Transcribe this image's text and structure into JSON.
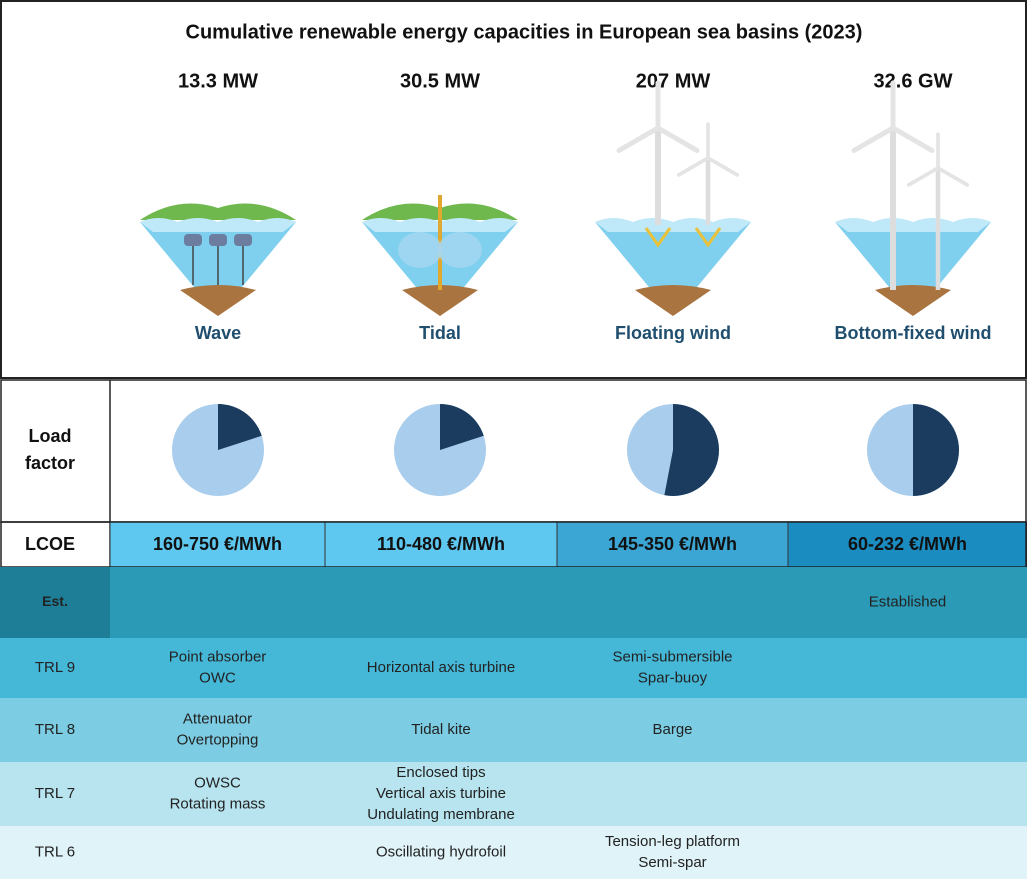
{
  "title": "Cumulative renewable energy capacities in European sea basins (2023)",
  "technologies": [
    {
      "name": "Wave",
      "capacity": "13.3 MW"
    },
    {
      "name": "Tidal",
      "capacity": "30.5 MW"
    },
    {
      "name": "Floating wind",
      "capacity": "207 MW"
    },
    {
      "name": "Bottom-fixed wind",
      "capacity": "32.6 GW"
    }
  ],
  "table": {
    "load_factor": {
      "label": [
        "Load",
        "factor"
      ],
      "values": [
        20,
        20,
        53,
        50
      ]
    },
    "lcoe": {
      "label": "LCOE",
      "values": [
        "160-750 €/MWh",
        "110-480 €/MWh",
        "145-350 €/MWh",
        "60-232 €/MWh"
      ]
    },
    "trl_rows": [
      {
        "label": "Est.",
        "cells": [
          null,
          null,
          null,
          [
            "Established"
          ]
        ]
      },
      {
        "label": "TRL 9",
        "cells": [
          [
            "Point absorber",
            "OWC"
          ],
          [
            "Horizontal axis turbine"
          ],
          [
            "Semi-submersible",
            "Spar-buoy"
          ],
          null
        ]
      },
      {
        "label": "TRL 8",
        "cells": [
          [
            "Attenuator",
            "Overtopping"
          ],
          [
            "Tidal kite"
          ],
          [
            "Barge"
          ],
          null
        ]
      },
      {
        "label": "TRL 7",
        "cells": [
          [
            "OWSC",
            "Rotating mass"
          ],
          [
            "Enclosed tips",
            "Vertical axis turbine",
            "Undulating membrane"
          ],
          null,
          null
        ]
      },
      {
        "label": "TRL 6",
        "cells": [
          null,
          [
            "Oscillating hydrofoil"
          ],
          [
            "Tension-leg platform",
            "Semi-spar"
          ],
          null
        ]
      }
    ]
  }
}
